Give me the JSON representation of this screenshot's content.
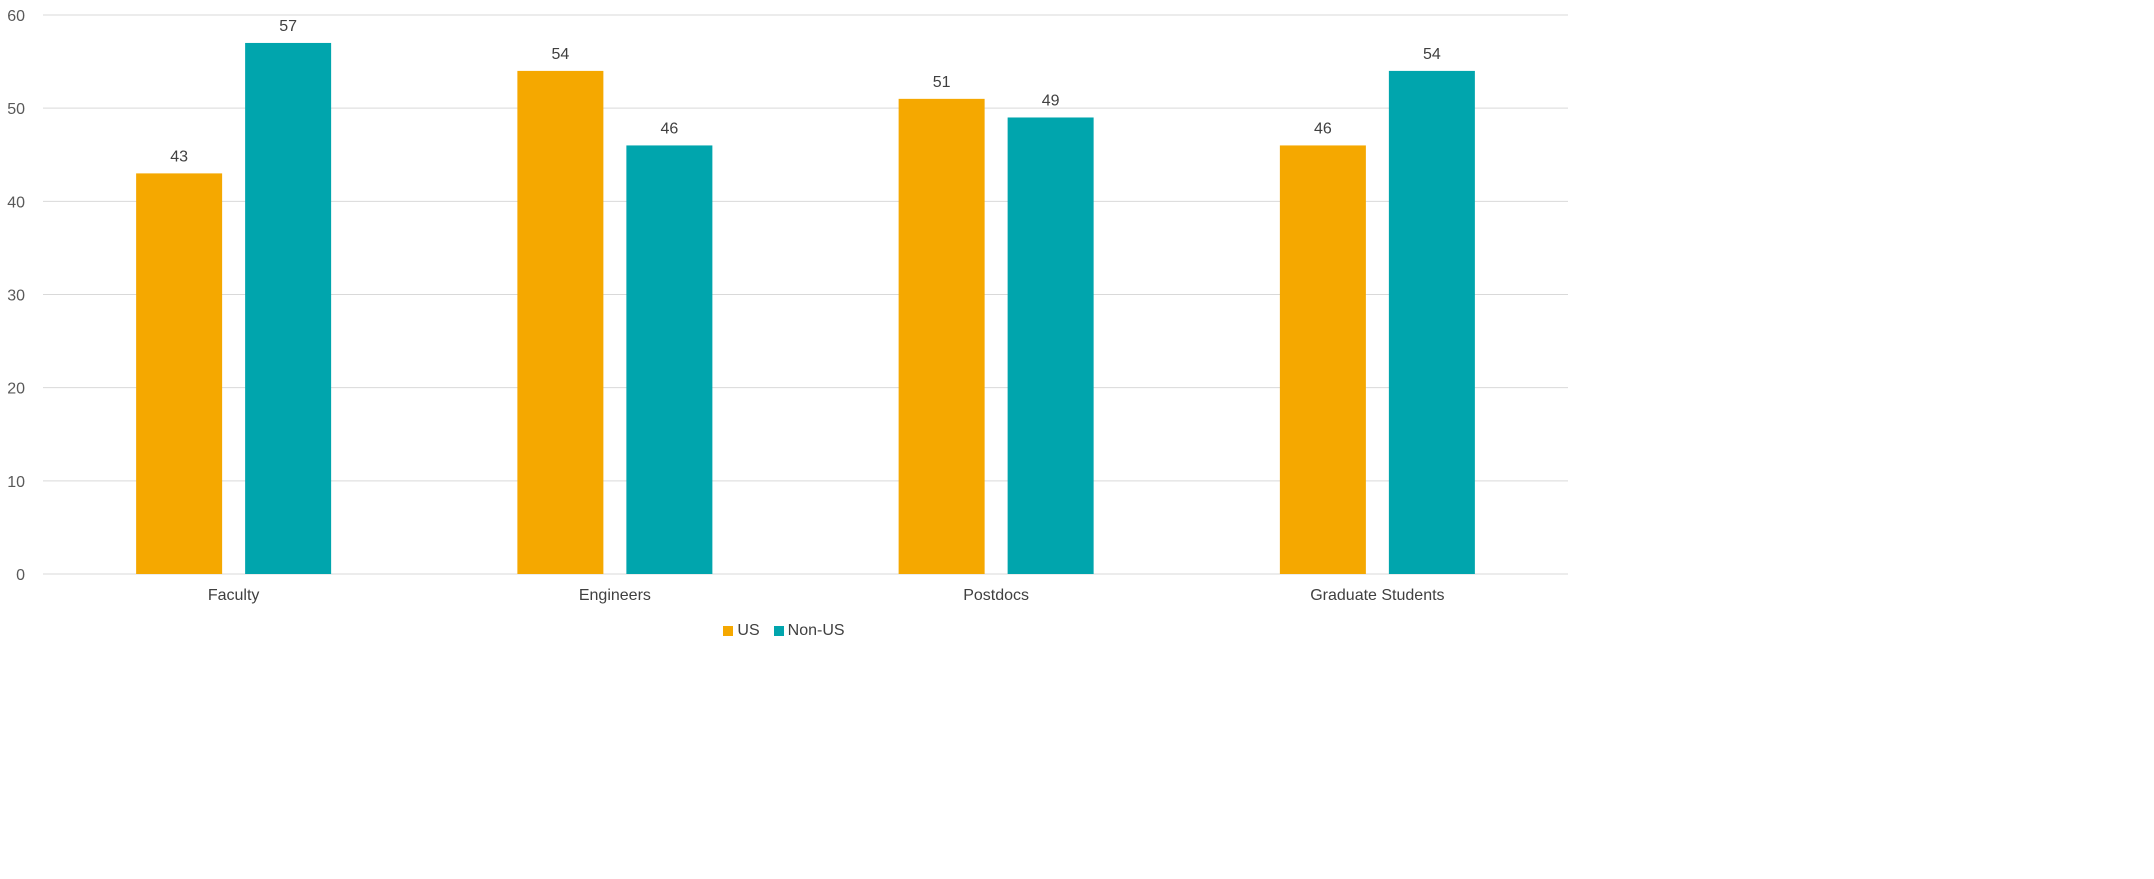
{
  "chart_data": {
    "type": "bar",
    "categories": [
      "Faculty",
      "Engineers",
      "Postdocs",
      "Graduate Students"
    ],
    "series": [
      {
        "name": "US",
        "values": [
          43,
          54,
          51,
          46
        ],
        "color": "#F5A800"
      },
      {
        "name": "Non-US",
        "values": [
          57,
          46,
          49,
          54
        ],
        "color": "#00A5AD"
      }
    ],
    "title": "",
    "xlabel": "",
    "ylabel": "",
    "ylim": [
      0,
      60
    ],
    "yticks": [
      0,
      10,
      20,
      30,
      40,
      50,
      60
    ],
    "grid": true,
    "legend": "bottom-center",
    "data_labels": true
  }
}
